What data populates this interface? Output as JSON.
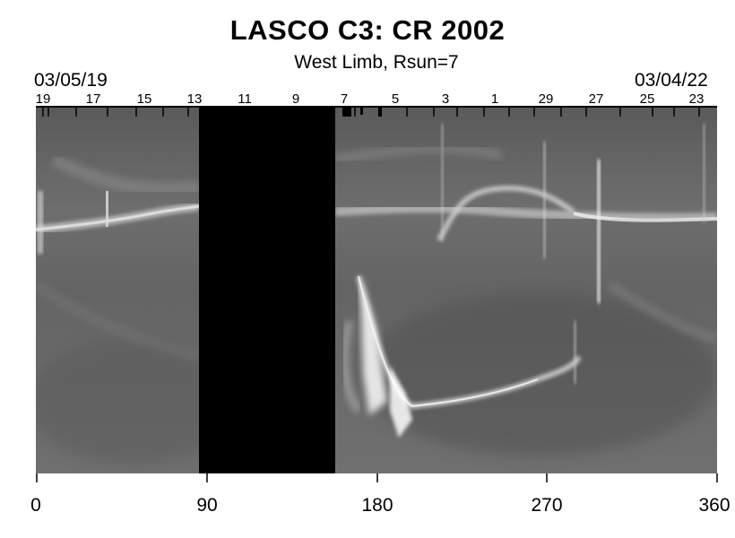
{
  "title": "LASCO C3: CR 2002",
  "subtitle": "West Limb, Rsun=7",
  "date_start": "03/05/19",
  "date_end": "03/04/22",
  "top_axis_labels": [
    "19",
    "17",
    "15",
    "13",
    "11",
    "9",
    "7",
    "5",
    "3",
    "1",
    "29",
    "27",
    "25",
    "23"
  ],
  "bottom_axis_labels": [
    "0",
    "90",
    "180",
    "270",
    "360"
  ],
  "colors": {
    "background": "#ffffff",
    "data_gap": "#000000",
    "image_gray": "#6a6a6a"
  }
}
